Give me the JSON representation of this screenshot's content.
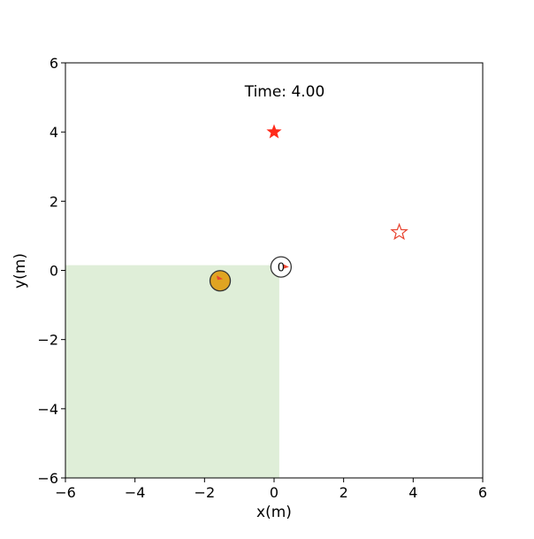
{
  "chart_data": {
    "type": "scatter",
    "annotation": "Time: 4.00",
    "x_label": "x(m)",
    "y_label": "y(m)",
    "xlim": [
      -6,
      6
    ],
    "ylim": [
      -6,
      6
    ],
    "xticks": [
      {
        "value": -6,
        "label": "−6"
      },
      {
        "value": -4,
        "label": "−4"
      },
      {
        "value": -2,
        "label": "−2"
      },
      0,
      2,
      4,
      6
    ],
    "yticks": [
      {
        "value": -6,
        "label": "−6"
      },
      {
        "value": -4,
        "label": "−4"
      },
      {
        "value": -2,
        "label": "−2"
      },
      0,
      2,
      4,
      6
    ],
    "region": {
      "x": [
        -6,
        0.15
      ],
      "y": [
        -6,
        0.15
      ],
      "color": "#dfeed8"
    },
    "series": [
      {
        "marker": "star",
        "color": "#ff2a1a",
        "x": [
          0
        ],
        "values": [
          4
        ]
      },
      {
        "marker": "hollow-star",
        "color": "#e8432f",
        "x": [
          3.6
        ],
        "values": [
          1.1
        ]
      },
      {
        "marker": "circle",
        "color": "#ffffff",
        "x": [
          0.2
        ],
        "values": [
          0.1
        ],
        "labels": [
          "0"
        ]
      },
      {
        "marker": "circle",
        "color": "#e0a422",
        "x": [
          -1.55
        ],
        "values": [
          -0.3
        ]
      }
    ]
  }
}
